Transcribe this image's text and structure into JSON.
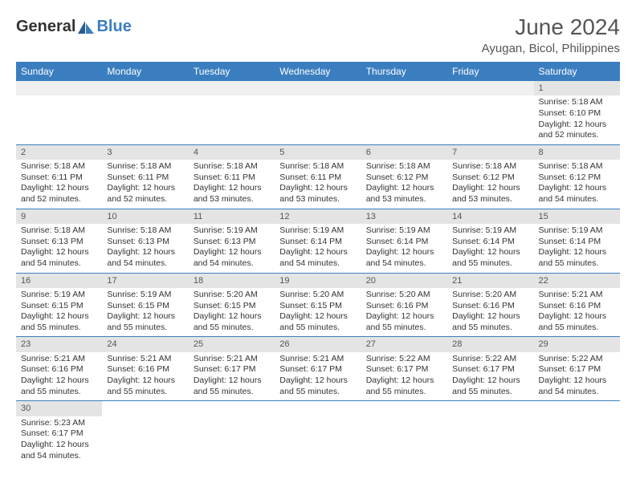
{
  "logo": {
    "text1": "General",
    "text2": "Blue",
    "accent": "#3b7ec0"
  },
  "title": "June 2024",
  "location": "Ayugan, Bicol, Philippines",
  "colors": {
    "header_bg": "#3b7ec0",
    "header_text": "#ffffff",
    "daynum_bg": "#e4e4e4",
    "border": "#3b7ec0",
    "text": "#333333"
  },
  "daysOfWeek": [
    "Sunday",
    "Monday",
    "Tuesday",
    "Wednesday",
    "Thursday",
    "Friday",
    "Saturday"
  ],
  "weeks": [
    [
      null,
      null,
      null,
      null,
      null,
      null,
      {
        "n": "1",
        "sr": "5:18 AM",
        "ss": "6:10 PM",
        "dl": "12 hours and 52 minutes."
      }
    ],
    [
      {
        "n": "2",
        "sr": "5:18 AM",
        "ss": "6:11 PM",
        "dl": "12 hours and 52 minutes."
      },
      {
        "n": "3",
        "sr": "5:18 AM",
        "ss": "6:11 PM",
        "dl": "12 hours and 52 minutes."
      },
      {
        "n": "4",
        "sr": "5:18 AM",
        "ss": "6:11 PM",
        "dl": "12 hours and 53 minutes."
      },
      {
        "n": "5",
        "sr": "5:18 AM",
        "ss": "6:11 PM",
        "dl": "12 hours and 53 minutes."
      },
      {
        "n": "6",
        "sr": "5:18 AM",
        "ss": "6:12 PM",
        "dl": "12 hours and 53 minutes."
      },
      {
        "n": "7",
        "sr": "5:18 AM",
        "ss": "6:12 PM",
        "dl": "12 hours and 53 minutes."
      },
      {
        "n": "8",
        "sr": "5:18 AM",
        "ss": "6:12 PM",
        "dl": "12 hours and 54 minutes."
      }
    ],
    [
      {
        "n": "9",
        "sr": "5:18 AM",
        "ss": "6:13 PM",
        "dl": "12 hours and 54 minutes."
      },
      {
        "n": "10",
        "sr": "5:18 AM",
        "ss": "6:13 PM",
        "dl": "12 hours and 54 minutes."
      },
      {
        "n": "11",
        "sr": "5:19 AM",
        "ss": "6:13 PM",
        "dl": "12 hours and 54 minutes."
      },
      {
        "n": "12",
        "sr": "5:19 AM",
        "ss": "6:14 PM",
        "dl": "12 hours and 54 minutes."
      },
      {
        "n": "13",
        "sr": "5:19 AM",
        "ss": "6:14 PM",
        "dl": "12 hours and 54 minutes."
      },
      {
        "n": "14",
        "sr": "5:19 AM",
        "ss": "6:14 PM",
        "dl": "12 hours and 55 minutes."
      },
      {
        "n": "15",
        "sr": "5:19 AM",
        "ss": "6:14 PM",
        "dl": "12 hours and 55 minutes."
      }
    ],
    [
      {
        "n": "16",
        "sr": "5:19 AM",
        "ss": "6:15 PM",
        "dl": "12 hours and 55 minutes."
      },
      {
        "n": "17",
        "sr": "5:19 AM",
        "ss": "6:15 PM",
        "dl": "12 hours and 55 minutes."
      },
      {
        "n": "18",
        "sr": "5:20 AM",
        "ss": "6:15 PM",
        "dl": "12 hours and 55 minutes."
      },
      {
        "n": "19",
        "sr": "5:20 AM",
        "ss": "6:15 PM",
        "dl": "12 hours and 55 minutes."
      },
      {
        "n": "20",
        "sr": "5:20 AM",
        "ss": "6:16 PM",
        "dl": "12 hours and 55 minutes."
      },
      {
        "n": "21",
        "sr": "5:20 AM",
        "ss": "6:16 PM",
        "dl": "12 hours and 55 minutes."
      },
      {
        "n": "22",
        "sr": "5:21 AM",
        "ss": "6:16 PM",
        "dl": "12 hours and 55 minutes."
      }
    ],
    [
      {
        "n": "23",
        "sr": "5:21 AM",
        "ss": "6:16 PM",
        "dl": "12 hours and 55 minutes."
      },
      {
        "n": "24",
        "sr": "5:21 AM",
        "ss": "6:16 PM",
        "dl": "12 hours and 55 minutes."
      },
      {
        "n": "25",
        "sr": "5:21 AM",
        "ss": "6:17 PM",
        "dl": "12 hours and 55 minutes."
      },
      {
        "n": "26",
        "sr": "5:21 AM",
        "ss": "6:17 PM",
        "dl": "12 hours and 55 minutes."
      },
      {
        "n": "27",
        "sr": "5:22 AM",
        "ss": "6:17 PM",
        "dl": "12 hours and 55 minutes."
      },
      {
        "n": "28",
        "sr": "5:22 AM",
        "ss": "6:17 PM",
        "dl": "12 hours and 55 minutes."
      },
      {
        "n": "29",
        "sr": "5:22 AM",
        "ss": "6:17 PM",
        "dl": "12 hours and 54 minutes."
      }
    ],
    [
      {
        "n": "30",
        "sr": "5:23 AM",
        "ss": "6:17 PM",
        "dl": "12 hours and 54 minutes."
      },
      null,
      null,
      null,
      null,
      null,
      null
    ]
  ],
  "labels": {
    "sunrise": "Sunrise: ",
    "sunset": "Sunset: ",
    "daylight": "Daylight: "
  }
}
